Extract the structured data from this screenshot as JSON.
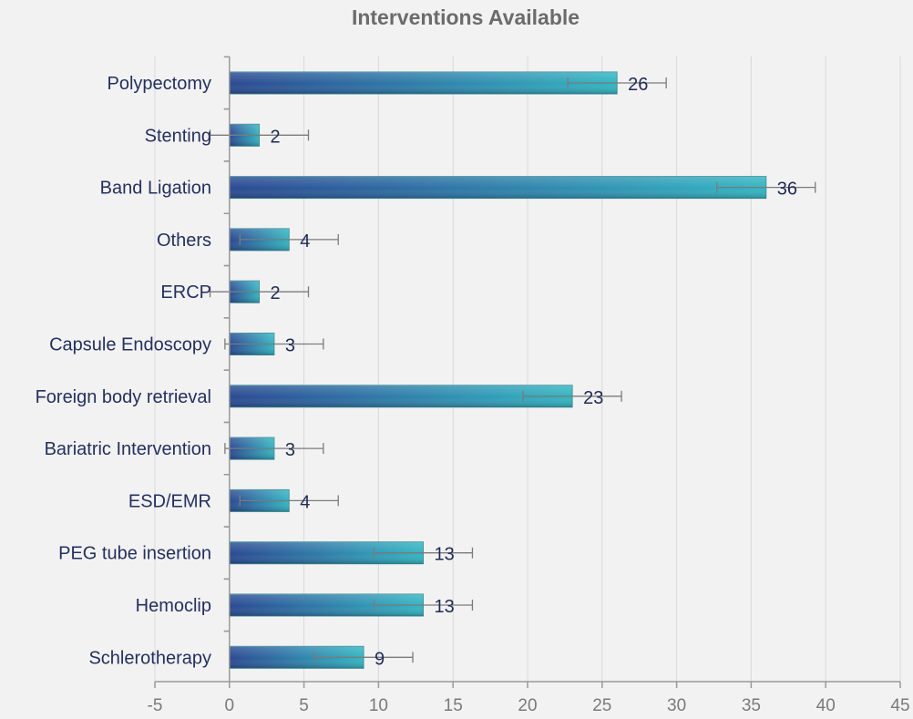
{
  "chart_data": {
    "type": "bar",
    "orientation": "horizontal",
    "title": "Interventions Available",
    "xlabel": "",
    "ylabel": "",
    "categories": [
      "Polypectomy",
      "Stenting",
      "Band Ligation",
      "Others",
      "ERCP",
      "Capsule Endoscopy",
      "Foreign body retrieval",
      "Bariatric Intervention",
      "ESD/EMR",
      "PEG tube insertion",
      "Hemoclip",
      "Schlerotherapy"
    ],
    "values": [
      26,
      2,
      36,
      4,
      2,
      3,
      23,
      3,
      4,
      13,
      13,
      9
    ],
    "error_margin": 3.3,
    "xlim": [
      -5,
      45
    ],
    "xticks": [
      -5,
      0,
      5,
      10,
      15,
      20,
      25,
      30,
      35,
      40,
      45
    ],
    "grid": true,
    "legend": "none",
    "colors": {
      "bar_start": "#2b4a93",
      "bar_end": "#33b5c2",
      "bar_border": "#3c8e9a",
      "error_bar": "#7b7b7b",
      "category_text": "#24305e",
      "tick_text": "#7a7a7a",
      "title_text": "#6b6b6b",
      "background": "#f2f2f2"
    }
  }
}
